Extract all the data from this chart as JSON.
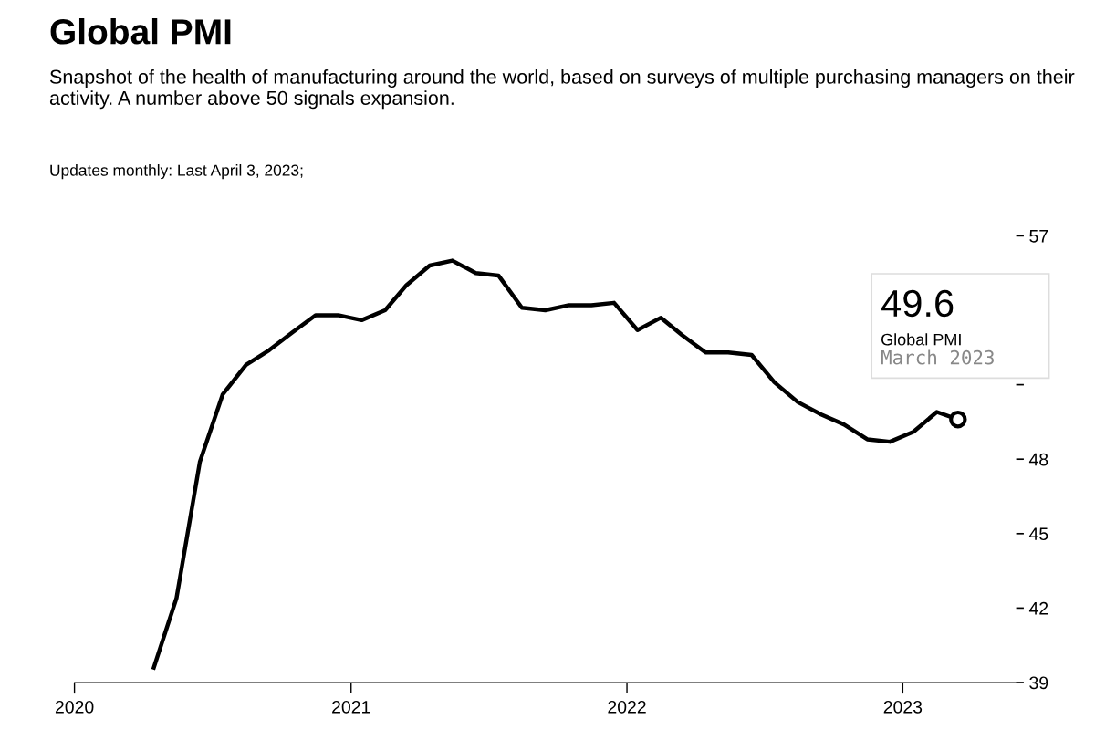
{
  "chart_data": {
    "type": "line",
    "title": "Global PMI",
    "subtitle": "Snapshot of the health of manufacturing around the world, based on surveys of multiple purchasing managers on their activity. A number above 50 signals expansion.",
    "x": [
      "2020-04-15",
      "2020-05-15",
      "2020-06-15",
      "2020-07-15",
      "2020-08-15",
      "2020-09-15",
      "2020-10-15",
      "2020-11-15",
      "2020-12-15",
      "2021-01-15",
      "2021-02-15",
      "2021-03-15",
      "2021-04-15",
      "2021-05-15",
      "2021-06-15",
      "2021-07-15",
      "2021-08-15",
      "2021-09-15",
      "2021-10-15",
      "2021-11-15",
      "2021-12-15",
      "2022-01-15",
      "2022-02-15",
      "2022-03-15",
      "2022-04-15",
      "2022-05-15",
      "2022-06-15",
      "2022-07-15",
      "2022-08-15",
      "2022-09-15",
      "2022-10-15",
      "2022-11-15",
      "2022-12-15",
      "2023-01-15",
      "2023-02-15",
      "2023-03-15"
    ],
    "series": [
      {
        "color": "#000000",
        "values": [
          39.6,
          42.4,
          47.9,
          50.6,
          51.8,
          52.4,
          53.1,
          53.8,
          53.8,
          53.6,
          54.0,
          55.0,
          55.8,
          56.0,
          55.5,
          55.4,
          54.1,
          54.0,
          54.2,
          54.2,
          54.3,
          53.2,
          53.7,
          53.0,
          52.3,
          52.3,
          52.2,
          51.1,
          50.3,
          49.8,
          49.4,
          48.8,
          48.7,
          49.1,
          49.9,
          49.6
        ]
      }
    ],
    "xlim": [
      "2020-01-01",
      "2023-05-31"
    ],
    "xticks": [
      {
        "value": "2020-01-01",
        "label": "2020"
      },
      {
        "value": "2021-01-01",
        "label": "2021"
      },
      {
        "value": "2022-01-01",
        "label": "2022"
      },
      {
        "value": "2023-01-01",
        "label": "2023"
      }
    ],
    "ylim": [
      39,
      57
    ],
    "yticks": [
      39,
      42,
      45,
      48,
      {
        "value": 51,
        "label": null
      },
      57
    ],
    "grid": false,
    "legend": false,
    "marker": "none",
    "line_style": "solid",
    "annotations": [
      "Updates monthly: Last April 3, 2023;",
      {
        "text": "49.6",
        "x": "2023-03-15",
        "y": 49.6
      },
      "Global PMI",
      "March 2023"
    ]
  }
}
